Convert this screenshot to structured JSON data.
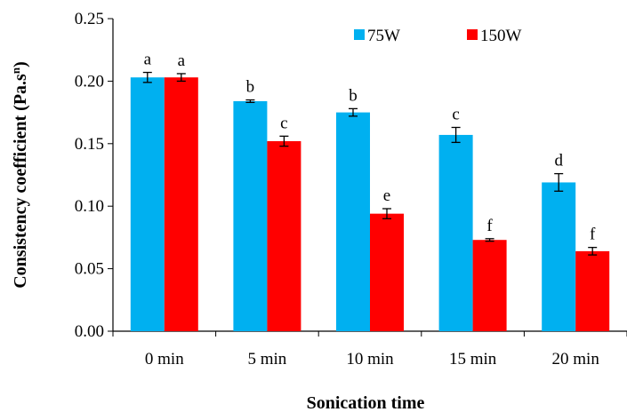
{
  "chart_data": {
    "type": "bar",
    "title": "",
    "xlabel": "Sonication time",
    "ylabel_main": "Consistency coefficient  (Pa.s",
    "ylabel_sup": "n",
    "ylabel_tail": ")",
    "ylim": [
      0,
      0.25
    ],
    "yticks": [
      "0.00",
      "0.05",
      "0.10",
      "0.15",
      "0.20",
      "0.25"
    ],
    "categories": [
      "0 min",
      "5 min",
      "10 min",
      "15 min",
      "20 min"
    ],
    "series": [
      {
        "name": "75W",
        "color": "#00B0F0",
        "values": [
          0.203,
          0.184,
          0.175,
          0.157,
          0.119
        ],
        "errors": [
          0.004,
          0.001,
          0.003,
          0.006,
          0.007
        ],
        "labels": [
          "a",
          "b",
          "b",
          "c",
          "d"
        ]
      },
      {
        "name": "150W",
        "color": "#FF0000",
        "values": [
          0.203,
          0.152,
          0.094,
          0.073,
          0.064
        ],
        "errors": [
          0.003,
          0.004,
          0.004,
          0.001,
          0.003
        ],
        "labels": [
          "a",
          "c",
          "e",
          "f",
          "f"
        ]
      }
    ],
    "legend_position": "top-right",
    "grid": false
  }
}
